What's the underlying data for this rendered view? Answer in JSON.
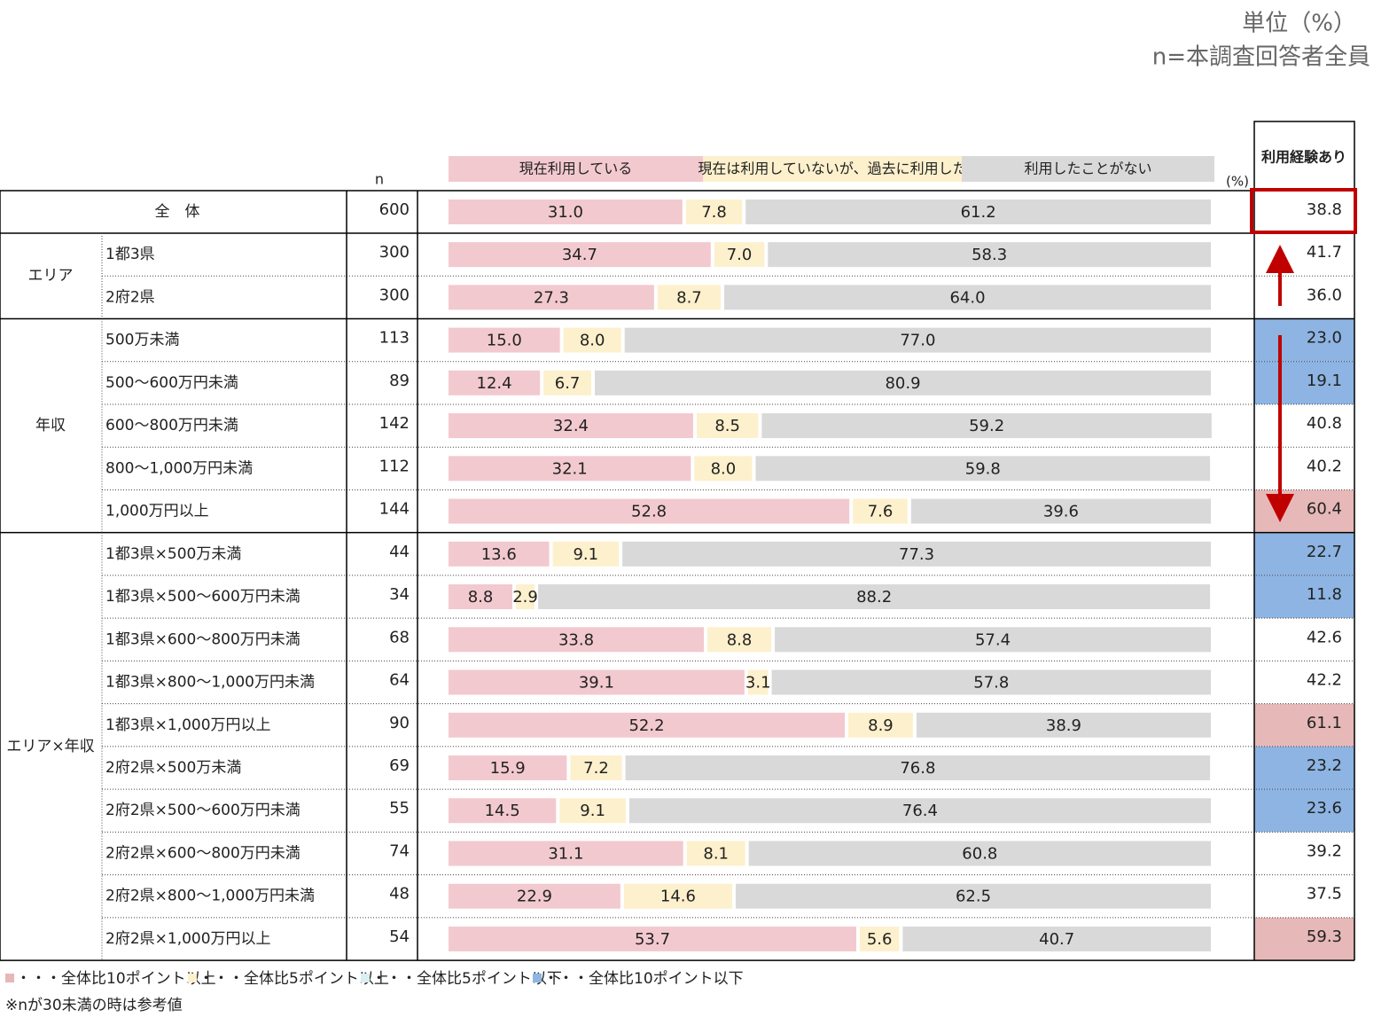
{
  "chart_data": {
    "type": "stacked-bar-table",
    "unit_note": "単位（%）",
    "respondents": "n=本調査回答者全員",
    "n_header": "n",
    "percent_label": "(%)",
    "experience_header": "利用経験あり",
    "series": [
      {
        "name": "現在利用している",
        "color": "#f2c9cf"
      },
      {
        "name": "現在は利用していないが、過去に利用した",
        "color": "#fdf0cc"
      },
      {
        "name": "利用したことがない",
        "color": "#d9d9d9"
      }
    ],
    "groups": [
      {
        "label": "全　体",
        "rows": [
          {
            "n": 600,
            "values": [
              31.0,
              7.8,
              61.2
            ],
            "value_labels": [
              "31.0",
              "7.8",
              "61.2"
            ],
            "experience": 38.8
          }
        ]
      },
      {
        "label": "エリア",
        "rows": [
          {
            "category": "1都3県",
            "n": 300,
            "values": [
              34.7,
              7.0,
              58.3
            ],
            "value_labels": [
              "34.7",
              "7.0",
              "58.3"
            ],
            "experience": 41.7
          },
          {
            "category": "2府2県",
            "n": 300,
            "values": [
              27.3,
              8.7,
              64.0
            ],
            "value_labels": [
              "27.3",
              "8.7",
              "64.0"
            ],
            "experience": 36.0,
            "experience_label": "36.0"
          }
        ]
      },
      {
        "label": "年収",
        "rows": [
          {
            "category": "500万未満",
            "n": 113,
            "values": [
              15.0,
              8.0,
              77.0
            ],
            "value_labels": [
              "15.0",
              "8.0",
              "77.0"
            ],
            "experience": 23.0,
            "experience_label": "23.0",
            "experience_color": "#8db4e2"
          },
          {
            "category": "500～600万円未満",
            "n": 89,
            "values": [
              12.4,
              6.7,
              80.9
            ],
            "value_labels": [
              "12.4",
              "6.7",
              "80.9"
            ],
            "experience": 19.1,
            "experience_color": "#8db4e2"
          },
          {
            "category": "600～800万円未満",
            "n": 142,
            "values": [
              32.4,
              8.5,
              59.2
            ],
            "value_labels": [
              "32.4",
              "8.5",
              "59.2"
            ],
            "experience": 40.8
          },
          {
            "category": "800～1,000万円未満",
            "n": 112,
            "values": [
              32.1,
              8.0,
              59.8
            ],
            "value_labels": [
              "32.1",
              "8.0",
              "59.8"
            ],
            "experience": 40.2
          },
          {
            "category": "1,000万円以上",
            "n": 144,
            "values": [
              52.8,
              7.6,
              39.6
            ],
            "value_labels": [
              "52.8",
              "7.6",
              "39.6"
            ],
            "experience": 60.4,
            "experience_color": "#e6b8b7"
          }
        ]
      },
      {
        "label": "エリア×年収",
        "rows": [
          {
            "category": "1都3県×500万未満",
            "n": 44,
            "values": [
              13.6,
              9.1,
              77.3
            ],
            "value_labels": [
              "13.6",
              "9.1",
              "77.3"
            ],
            "experience": 22.7,
            "experience_color": "#8db4e2"
          },
          {
            "category": "1都3県×500～600万円未満",
            "n": 34,
            "values": [
              8.8,
              2.9,
              88.2
            ],
            "value_labels": [
              "8.8",
              "2.9",
              "88.2"
            ],
            "experience": 11.8,
            "experience_color": "#8db4e2"
          },
          {
            "category": "1都3県×600～800万円未満",
            "n": 68,
            "values": [
              33.8,
              8.8,
              57.4
            ],
            "value_labels": [
              "33.8",
              "8.8",
              "57.4"
            ],
            "experience": 42.6
          },
          {
            "category": "1都3県×800～1,000万円未満",
            "n": 64,
            "values": [
              39.1,
              3.1,
              57.8
            ],
            "value_labels": [
              "39.1",
              "3.1",
              "57.8"
            ],
            "experience": 42.2
          },
          {
            "category": "1都3県×1,000万円以上",
            "n": 90,
            "values": [
              52.2,
              8.9,
              38.9
            ],
            "value_labels": [
              "52.2",
              "8.9",
              "38.9"
            ],
            "experience": 61.1,
            "experience_color": "#e6b8b7"
          },
          {
            "category": "2府2県×500万未満",
            "n": 69,
            "values": [
              15.9,
              7.2,
              76.8
            ],
            "value_labels": [
              "15.9",
              "7.2",
              "76.8"
            ],
            "experience": 23.2,
            "experience_color": "#8db4e2"
          },
          {
            "category": "2府2県×500～600万円未満",
            "n": 55,
            "values": [
              14.5,
              9.1,
              76.4
            ],
            "value_labels": [
              "14.5",
              "9.1",
              "76.4"
            ],
            "experience": 23.6,
            "experience_color": "#8db4e2"
          },
          {
            "category": "2府2県×600～800万円未満",
            "n": 74,
            "values": [
              31.1,
              8.1,
              60.8
            ],
            "value_labels": [
              "31.1",
              "8.1",
              "60.8"
            ],
            "experience": 39.2
          },
          {
            "category": "2府2県×800～1,000万円未満",
            "n": 48,
            "values": [
              22.9,
              14.6,
              62.5
            ],
            "value_labels": [
              "22.9",
              "14.6",
              "62.5"
            ],
            "experience": 37.5
          },
          {
            "category": "2府2県×1,000万円以上",
            "n": 54,
            "values": [
              53.7,
              5.6,
              40.7
            ],
            "value_labels": [
              "53.7",
              "5.6",
              "40.7"
            ],
            "experience": 59.3,
            "experience_color": "#e6b8b7"
          }
        ]
      }
    ],
    "legend_notes": [
      {
        "color": "#e6b8b7",
        "label": "・・・全体比10ポイント以上"
      },
      {
        "color": "#fdf0cc",
        "label": "・・・全体比5ポイント以上"
      },
      {
        "color": "#daeef3",
        "label": "・・・全体比5ポイント以下"
      },
      {
        "color": "#8db4e2",
        "label": "・・・全体比10ポイント以下"
      }
    ],
    "footnote": "※nが30未満の時は参考値"
  }
}
